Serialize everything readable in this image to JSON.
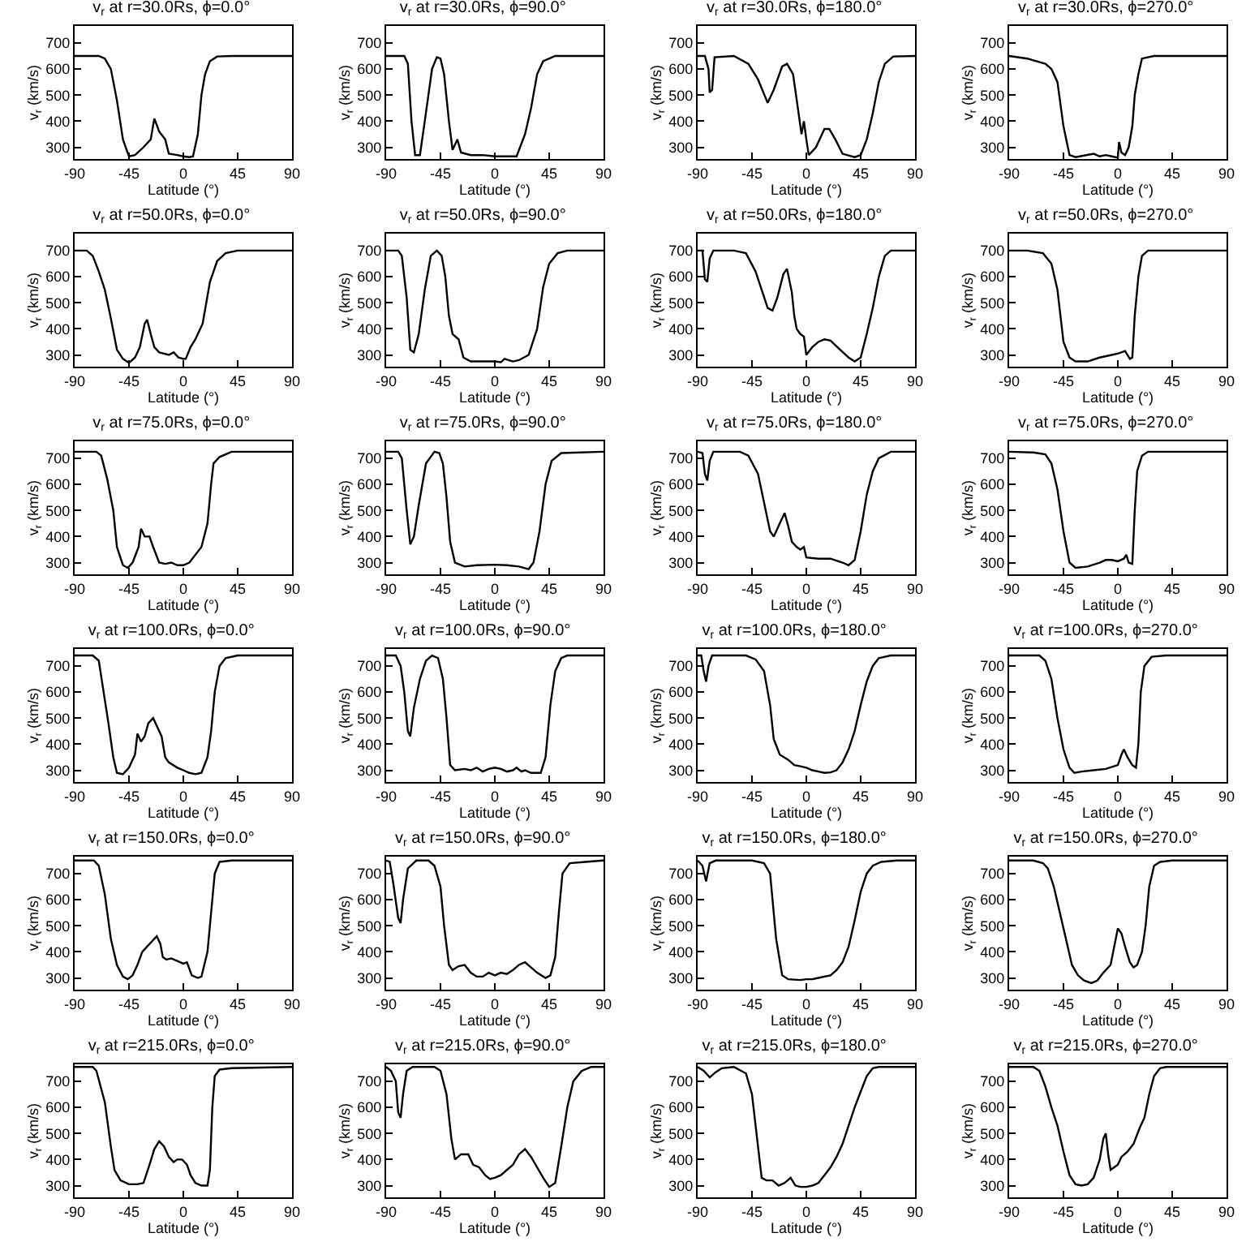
{
  "chart_data": [
    {
      "type": "line",
      "title": "v$_{r}$ at r=30.0Rs, ϕ=0.0°",
      "xlabel": "Latitude (°)",
      "ylabel": "v$_{r}$ (km/s)",
      "xlim": [
        -90,
        90
      ],
      "xticks": [
        -90,
        -45,
        0,
        45,
        90
      ],
      "ylim": [
        255,
        765
      ],
      "yticks": [
        300,
        400,
        500,
        600,
        700
      ],
      "x": [
        -90,
        -70,
        -65,
        -60,
        -55,
        -50,
        -45,
        -40,
        -33,
        -27,
        -24,
        -20,
        -15,
        -12,
        -5,
        0,
        5,
        8,
        12,
        15,
        18,
        22,
        28,
        40,
        90
      ],
      "series": [
        {
          "color": "#000000",
          "values": [
            650,
            650,
            640,
            600,
            480,
            330,
            265,
            270,
            300,
            330,
            410,
            360,
            330,
            275,
            270,
            265,
            262,
            265,
            350,
            500,
            580,
            630,
            648,
            650,
            650
          ]
        }
      ]
    },
    {
      "type": "line",
      "title": "v$_{r}$ at r=30.0Rs, ϕ=90.0°",
      "xlabel": "Latitude (°)",
      "ylabel": "v$_{r}$ (km/s)",
      "xlim": [
        -90,
        90
      ],
      "xticks": [
        -90,
        -45,
        0,
        45,
        90
      ],
      "ylim": [
        255,
        765
      ],
      "yticks": [
        300,
        400,
        500,
        600,
        700
      ],
      "x": [
        -90,
        -75,
        -72,
        -69,
        -66,
        -62,
        -58,
        -52,
        -48,
        -45,
        -42,
        -38,
        -35,
        -31,
        -28,
        -20,
        -10,
        0,
        10,
        18,
        25,
        30,
        35,
        40,
        50,
        90
      ],
      "series": [
        {
          "color": "#000000",
          "values": [
            650,
            650,
            620,
            400,
            270,
            270,
            400,
            600,
            645,
            640,
            580,
            400,
            290,
            330,
            280,
            270,
            270,
            265,
            265,
            265,
            350,
            450,
            580,
            630,
            650,
            650
          ]
        }
      ]
    },
    {
      "type": "line",
      "title": "v$_{r}$ at r=30.0Rs, ϕ=180.0°",
      "xlabel": "Latitude (°)",
      "ylabel": "v$_{r}$ (km/s)",
      "xlim": [
        -90,
        90
      ],
      "xticks": [
        -90,
        -45,
        0,
        45,
        90
      ],
      "ylim": [
        255,
        765
      ],
      "yticks": [
        300,
        400,
        500,
        600,
        700
      ],
      "x": [
        -90,
        -84,
        -81,
        -80,
        -78,
        -76,
        -60,
        -48,
        -40,
        -32,
        -27,
        -20,
        -16,
        -11,
        -7,
        -4,
        -2,
        0,
        2,
        8,
        15,
        19,
        24,
        30,
        40,
        45,
        50,
        55,
        60,
        65,
        72,
        90
      ],
      "series": [
        {
          "color": "#000000",
          "values": [
            650,
            650,
            600,
            510,
            520,
            645,
            650,
            620,
            560,
            470,
            520,
            610,
            620,
            580,
            450,
            350,
            400,
            330,
            270,
            300,
            370,
            370,
            330,
            275,
            262,
            270,
            330,
            430,
            550,
            620,
            648,
            650
          ]
        }
      ]
    },
    {
      "type": "line",
      "title": "v$_{r}$ at r=30.0Rs, ϕ=270.0°",
      "xlabel": "Latitude (°)",
      "ylabel": "v$_{r}$ (km/s)",
      "xlim": [
        -90,
        90
      ],
      "xticks": [
        -90,
        -45,
        0,
        45,
        90
      ],
      "ylim": [
        255,
        765
      ],
      "yticks": [
        300,
        400,
        500,
        600,
        700
      ],
      "x": [
        -90,
        -75,
        -60,
        -55,
        -50,
        -45,
        -40,
        -35,
        -20,
        -15,
        -10,
        -5,
        0,
        1,
        3,
        6,
        9,
        12,
        14,
        17,
        20,
        30,
        90
      ],
      "series": [
        {
          "color": "#000000",
          "values": [
            650,
            640,
            620,
            600,
            550,
            380,
            270,
            262,
            275,
            265,
            270,
            265,
            260,
            320,
            280,
            270,
            300,
            380,
            500,
            580,
            640,
            650,
            650
          ]
        }
      ]
    },
    {
      "type": "line",
      "title": "v$_{r}$ at r=50.0Rs, ϕ=0.0°",
      "xlabel": "Latitude (°)",
      "ylabel": "v$_{r}$ (km/s)",
      "xlim": [
        -90,
        90
      ],
      "xticks": [
        -90,
        -45,
        0,
        45,
        90
      ],
      "ylim": [
        255,
        765
      ],
      "yticks": [
        300,
        400,
        500,
        600,
        700
      ],
      "x": [
        -90,
        -80,
        -75,
        -70,
        -65,
        -60,
        -55,
        -50,
        -45,
        -40,
        -36,
        -32,
        -30,
        -27,
        -24,
        -20,
        -12,
        -8,
        -4,
        0,
        2,
        6,
        10,
        16,
        22,
        28,
        35,
        45,
        90
      ],
      "series": [
        {
          "color": "#000000",
          "values": [
            700,
            700,
            680,
            620,
            550,
            440,
            320,
            285,
            270,
            290,
            330,
            420,
            435,
            380,
            330,
            310,
            300,
            310,
            290,
            285,
            285,
            330,
            360,
            420,
            580,
            660,
            690,
            700,
            700
          ]
        }
      ]
    },
    {
      "type": "line",
      "title": "v$_{r}$ at r=50.0Rs, ϕ=90.0°",
      "xlabel": "Latitude (°)",
      "ylabel": "v$_{r}$ (km/s)",
      "xlim": [
        -90,
        90
      ],
      "xticks": [
        -90,
        -45,
        0,
        45,
        90
      ],
      "ylim": [
        255,
        765
      ],
      "yticks": [
        300,
        400,
        500,
        600,
        700
      ],
      "x": [
        -90,
        -80,
        -77,
        -73,
        -70,
        -67,
        -63,
        -58,
        -53,
        -48,
        -44,
        -41,
        -38,
        -35,
        -30,
        -26,
        -20,
        -10,
        0,
        5,
        8,
        15,
        20,
        28,
        35,
        40,
        45,
        52,
        60,
        90
      ],
      "series": [
        {
          "color": "#000000",
          "values": [
            700,
            700,
            680,
            520,
            320,
            310,
            380,
            550,
            680,
            700,
            680,
            600,
            450,
            380,
            360,
            290,
            275,
            275,
            275,
            272,
            285,
            275,
            280,
            300,
            400,
            560,
            650,
            690,
            700,
            700
          ]
        }
      ]
    },
    {
      "type": "line",
      "title": "v$_{r}$ at r=50.0Rs, ϕ=180.0°",
      "xlabel": "Latitude (°)",
      "ylabel": "v$_{r}$ (km/s)",
      "xlim": [
        -90,
        90
      ],
      "xticks": [
        -90,
        -45,
        0,
        45,
        90
      ],
      "ylim": [
        255,
        765
      ],
      "yticks": [
        300,
        400,
        500,
        600,
        700
      ],
      "x": [
        -90,
        -86,
        -84,
        -82,
        -80,
        -77,
        -60,
        -50,
        -42,
        -37,
        -32,
        -28,
        -24,
        -19,
        -16,
        -12,
        -10,
        -8,
        -5,
        -2,
        0,
        5,
        10,
        15,
        20,
        28,
        35,
        40,
        45,
        50,
        55,
        60,
        65,
        70,
        90
      ],
      "series": [
        {
          "color": "#000000",
          "values": [
            700,
            700,
            590,
            580,
            670,
            700,
            700,
            690,
            620,
            550,
            480,
            470,
            520,
            610,
            630,
            540,
            450,
            400,
            380,
            370,
            300,
            330,
            350,
            360,
            355,
            320,
            290,
            275,
            290,
            380,
            480,
            600,
            680,
            700,
            700
          ]
        }
      ]
    },
    {
      "type": "line",
      "title": "v$_{r}$ at r=50.0Rs, ϕ=270.0°",
      "xlabel": "Latitude (°)",
      "ylabel": "v$_{r}$ (km/s)",
      "xlim": [
        -90,
        90
      ],
      "xticks": [
        -90,
        -45,
        0,
        45,
        90
      ],
      "ylim": [
        255,
        765
      ],
      "yticks": [
        300,
        400,
        500,
        600,
        700
      ],
      "x": [
        -90,
        -75,
        -62,
        -55,
        -50,
        -45,
        -40,
        -35,
        -25,
        -15,
        -5,
        0,
        3,
        6,
        8,
        10,
        12,
        14,
        17,
        20,
        25,
        90
      ],
      "series": [
        {
          "color": "#000000",
          "values": [
            700,
            700,
            690,
            650,
            550,
            350,
            290,
            275,
            275,
            290,
            300,
            305,
            310,
            315,
            300,
            285,
            290,
            450,
            600,
            680,
            700,
            700
          ]
        }
      ]
    },
    {
      "type": "line",
      "title": "v$_{r}$ at r=75.0Rs, ϕ=0.0°",
      "xlabel": "Latitude (°)",
      "ylabel": "v$_{r}$ (km/s)",
      "xlim": [
        -90,
        90
      ],
      "xticks": [
        -90,
        -45,
        0,
        45,
        90
      ],
      "ylim": [
        255,
        765
      ],
      "yticks": [
        300,
        400,
        500,
        600,
        700
      ],
      "x": [
        -90,
        -72,
        -68,
        -63,
        -58,
        -55,
        -50,
        -46,
        -42,
        -37,
        -35,
        -32,
        -28,
        -25,
        -20,
        -15,
        -10,
        -5,
        0,
        5,
        10,
        15,
        20,
        23,
        25,
        30,
        40,
        90
      ],
      "series": [
        {
          "color": "#000000",
          "values": [
            725,
            725,
            710,
            620,
            500,
            360,
            290,
            280,
            300,
            360,
            430,
            400,
            400,
            360,
            300,
            295,
            300,
            290,
            290,
            300,
            330,
            360,
            450,
            600,
            680,
            705,
            725,
            725
          ]
        }
      ]
    },
    {
      "type": "line",
      "title": "v$_{r}$ at r=75.0Rs, ϕ=90.0°",
      "xlabel": "Latitude (°)",
      "ylabel": "v$_{r}$ (km/s)",
      "xlim": [
        -90,
        90
      ],
      "xticks": [
        -90,
        -45,
        0,
        45,
        90
      ],
      "ylim": [
        255,
        765
      ],
      "yticks": [
        300,
        400,
        500,
        600,
        700
      ],
      "x": [
        -90,
        -80,
        -77,
        -73,
        -70,
        -67,
        -63,
        -57,
        -50,
        -46,
        -43,
        -40,
        -37,
        -33,
        -25,
        -15,
        0,
        10,
        20,
        28,
        32,
        37,
        42,
        47,
        55,
        90
      ],
      "series": [
        {
          "color": "#000000",
          "values": [
            725,
            725,
            700,
            500,
            370,
            400,
            520,
            680,
            725,
            720,
            680,
            550,
            380,
            300,
            285,
            290,
            292,
            290,
            285,
            275,
            300,
            420,
            600,
            690,
            720,
            725
          ]
        }
      ]
    },
    {
      "type": "line",
      "title": "v$_{r}$ at r=75.0Rs, ϕ=180.0°",
      "xlabel": "Latitude (°)",
      "ylabel": "v$_{r}$ (km/s)",
      "xlim": [
        -90,
        90
      ],
      "xticks": [
        -90,
        -45,
        0,
        45,
        90
      ],
      "ylim": [
        255,
        765
      ],
      "yticks": [
        300,
        400,
        500,
        600,
        700
      ],
      "x": [
        -90,
        -86,
        -84,
        -82,
        -80,
        -77,
        -55,
        -48,
        -40,
        -35,
        -30,
        -27,
        -22,
        -18,
        -15,
        -12,
        -8,
        -5,
        -2,
        0,
        10,
        20,
        30,
        35,
        40,
        45,
        50,
        55,
        60,
        70,
        90
      ],
      "series": [
        {
          "color": "#000000",
          "values": [
            725,
            720,
            640,
            615,
            690,
            725,
            725,
            710,
            640,
            530,
            420,
            400,
            450,
            490,
            440,
            380,
            360,
            350,
            360,
            320,
            315,
            315,
            300,
            290,
            310,
            420,
            560,
            650,
            700,
            725,
            725
          ]
        }
      ]
    },
    {
      "type": "line",
      "title": "v$_{r}$ at r=75.0Rs, ϕ=270.0°",
      "xlabel": "Latitude (°)",
      "ylabel": "v$_{r}$ (km/s)",
      "xlim": [
        -90,
        90
      ],
      "xticks": [
        -90,
        -45,
        0,
        45,
        90
      ],
      "ylim": [
        255,
        765
      ],
      "yticks": [
        300,
        400,
        500,
        600,
        700
      ],
      "x": [
        -90,
        -70,
        -60,
        -55,
        -50,
        -45,
        -40,
        -35,
        -25,
        -15,
        -10,
        -5,
        0,
        5,
        7,
        9,
        12,
        14,
        16,
        20,
        25,
        90
      ],
      "series": [
        {
          "color": "#000000",
          "values": [
            725,
            722,
            715,
            680,
            580,
            420,
            300,
            280,
            285,
            300,
            310,
            310,
            305,
            315,
            330,
            300,
            295,
            500,
            650,
            710,
            725,
            725
          ]
        }
      ]
    },
    {
      "type": "line",
      "title": "v$_{r}$ at r=100.0Rs, ϕ=0.0°",
      "xlabel": "Latitude (°)",
      "ylabel": "v$_{r}$ (km/s)",
      "xlim": [
        -90,
        90
      ],
      "xticks": [
        -90,
        -45,
        0,
        45,
        90
      ],
      "ylim": [
        255,
        765
      ],
      "yticks": [
        300,
        400,
        500,
        600,
        700
      ],
      "x": [
        -90,
        -75,
        -70,
        -66,
        -62,
        -58,
        -55,
        -50,
        -45,
        -40,
        -38,
        -35,
        -32,
        -29,
        -25,
        -22,
        -18,
        -15,
        -12,
        -5,
        0,
        5,
        10,
        15,
        20,
        23,
        26,
        30,
        35,
        45,
        90
      ],
      "series": [
        {
          "color": "#000000",
          "values": [
            740,
            740,
            720,
            600,
            480,
            350,
            290,
            285,
            310,
            360,
            440,
            410,
            430,
            480,
            500,
            470,
            430,
            350,
            330,
            310,
            300,
            290,
            285,
            290,
            350,
            450,
            600,
            700,
            730,
            740,
            740
          ]
        }
      ]
    },
    {
      "type": "line",
      "title": "v$_{r}$ at r=100.0Rs, ϕ=90.0°",
      "xlabel": "Latitude (°)",
      "ylabel": "v$_{r}$ (km/s)",
      "xlim": [
        -90,
        90
      ],
      "xticks": [
        -90,
        -45,
        0,
        45,
        90
      ],
      "ylim": [
        255,
        765
      ],
      "yticks": [
        300,
        400,
        500,
        600,
        700
      ],
      "x": [
        -90,
        -82,
        -78,
        -75,
        -72,
        -70,
        -67,
        -62,
        -57,
        -52,
        -47,
        -43,
        -40,
        -37,
        -33,
        -25,
        -20,
        -15,
        -10,
        -5,
        0,
        5,
        10,
        15,
        18,
        22,
        25,
        30,
        38,
        42,
        46,
        50,
        55,
        60,
        90
      ],
      "series": [
        {
          "color": "#000000",
          "values": [
            740,
            740,
            700,
            600,
            450,
            430,
            540,
            650,
            720,
            740,
            730,
            650,
            500,
            320,
            300,
            305,
            300,
            310,
            295,
            305,
            310,
            305,
            295,
            300,
            310,
            295,
            300,
            290,
            290,
            350,
            550,
            680,
            730,
            740,
            740
          ]
        }
      ]
    },
    {
      "type": "line",
      "title": "v$_{r}$ at r=100.0Rs, ϕ=180.0°",
      "xlabel": "Latitude (°)",
      "ylabel": "v$_{r}$ (km/s)",
      "xlim": [
        -90,
        90
      ],
      "xticks": [
        -90,
        -45,
        0,
        45,
        90
      ],
      "ylim": [
        255,
        765
      ],
      "yticks": [
        300,
        400,
        500,
        600,
        700
      ],
      "x": [
        -90,
        -87,
        -85,
        -83,
        -81,
        -78,
        -50,
        -42,
        -35,
        -30,
        -27,
        -22,
        -15,
        -10,
        -5,
        0,
        5,
        10,
        15,
        20,
        25,
        30,
        35,
        40,
        45,
        50,
        55,
        60,
        70,
        90
      ],
      "series": [
        {
          "color": "#000000",
          "values": [
            740,
            740,
            680,
            640,
            700,
            740,
            740,
            725,
            680,
            550,
            420,
            360,
            340,
            320,
            315,
            310,
            300,
            295,
            290,
            292,
            300,
            330,
            380,
            450,
            550,
            640,
            700,
            730,
            740,
            740
          ]
        }
      ]
    },
    {
      "type": "line",
      "title": "v$_{r}$ at r=100.0Rs, ϕ=270.0°",
      "xlabel": "Latitude (°)",
      "ylabel": "v$_{r}$ (km/s)",
      "xlim": [
        -90,
        90
      ],
      "xticks": [
        -90,
        -45,
        0,
        45,
        90
      ],
      "ylim": [
        255,
        765
      ],
      "yticks": [
        300,
        400,
        500,
        600,
        700
      ],
      "x": [
        -90,
        -65,
        -60,
        -55,
        -50,
        -45,
        -40,
        -36,
        -30,
        -20,
        -10,
        0,
        3,
        5,
        8,
        12,
        15,
        17,
        19,
        22,
        28,
        40,
        90
      ],
      "series": [
        {
          "color": "#000000",
          "values": [
            740,
            740,
            720,
            650,
            500,
            380,
            310,
            290,
            295,
            300,
            305,
            320,
            360,
            380,
            350,
            320,
            310,
            400,
            600,
            700,
            735,
            740,
            740
          ]
        }
      ]
    },
    {
      "type": "line",
      "title": "v$_{r}$ at r=150.0Rs, ϕ=0.0°",
      "xlabel": "Latitude (°)",
      "ylabel": "v$_{r}$ (km/s)",
      "xlim": [
        -90,
        90
      ],
      "xticks": [
        -90,
        -45,
        0,
        45,
        90
      ],
      "ylim": [
        255,
        765
      ],
      "yticks": [
        300,
        400,
        500,
        600,
        700
      ],
      "x": [
        -90,
        -74,
        -70,
        -65,
        -60,
        -55,
        -50,
        -46,
        -42,
        -38,
        -34,
        -30,
        -26,
        -22,
        -19,
        -17,
        -14,
        -10,
        -5,
        0,
        3,
        7,
        12,
        15,
        20,
        23,
        26,
        30,
        40,
        90
      ],
      "series": [
        {
          "color": "#000000",
          "values": [
            750,
            750,
            730,
            620,
            450,
            350,
            305,
            295,
            310,
            350,
            400,
            420,
            440,
            460,
            430,
            380,
            370,
            375,
            365,
            355,
            360,
            310,
            300,
            305,
            400,
            550,
            700,
            745,
            750,
            750
          ]
        }
      ]
    },
    {
      "type": "line",
      "title": "v$_{r}$ at r=150.0Rs, ϕ=90.0°",
      "xlabel": "Latitude (°)",
      "ylabel": "v$_{r}$ (km/s)",
      "xlim": [
        -90,
        90
      ],
      "xticks": [
        -90,
        -45,
        0,
        45,
        90
      ],
      "ylim": [
        255,
        765
      ],
      "yticks": [
        300,
        400,
        500,
        600,
        700
      ],
      "x": [
        -90,
        -87,
        -84,
        -80,
        -78,
        -76,
        -72,
        -65,
        -55,
        -50,
        -45,
        -42,
        -38,
        -35,
        -30,
        -25,
        -20,
        -15,
        -10,
        -5,
        0,
        5,
        10,
        15,
        20,
        25,
        30,
        35,
        42,
        46,
        50,
        53,
        56,
        62,
        75,
        90
      ],
      "series": [
        {
          "color": "#000000",
          "values": [
            750,
            745,
            660,
            530,
            510,
            600,
            720,
            750,
            750,
            730,
            650,
            500,
            350,
            330,
            345,
            350,
            320,
            305,
            305,
            320,
            310,
            320,
            315,
            330,
            350,
            360,
            340,
            320,
            300,
            310,
            380,
            550,
            700,
            740,
            745,
            750
          ]
        }
      ]
    },
    {
      "type": "line",
      "title": "v$_{r}$ at r=150.0Rs, ϕ=180.0°",
      "xlabel": "Latitude (°)",
      "ylabel": "v$_{r}$ (km/s)",
      "xlim": [
        -90,
        90
      ],
      "xticks": [
        -90,
        -45,
        0,
        45,
        90
      ],
      "ylim": [
        255,
        765
      ],
      "yticks": [
        300,
        400,
        500,
        600,
        700
      ],
      "x": [
        -90,
        -86,
        -83,
        -80,
        -75,
        -45,
        -35,
        -30,
        -28,
        -25,
        -20,
        -15,
        -5,
        0,
        5,
        10,
        20,
        25,
        30,
        35,
        40,
        45,
        50,
        55,
        62,
        75,
        90
      ],
      "series": [
        {
          "color": "#000000",
          "values": [
            750,
            730,
            670,
            740,
            750,
            750,
            740,
            700,
            600,
            450,
            310,
            295,
            292,
            295,
            295,
            300,
            310,
            330,
            360,
            420,
            520,
            630,
            700,
            730,
            745,
            750,
            750
          ]
        }
      ]
    },
    {
      "type": "line",
      "title": "v$_{r}$ at r=150.0Rs, ϕ=270.0°",
      "xlabel": "Latitude (°)",
      "ylabel": "v$_{r}$ (km/s)",
      "xlim": [
        -90,
        90
      ],
      "xticks": [
        -90,
        -45,
        0,
        45,
        90
      ],
      "ylim": [
        255,
        765
      ],
      "yticks": [
        300,
        400,
        500,
        600,
        700
      ],
      "x": [
        -90,
        -70,
        -62,
        -58,
        -53,
        -48,
        -43,
        -38,
        -33,
        -28,
        -22,
        -17,
        -12,
        -6,
        -3,
        0,
        3,
        6,
        10,
        13,
        16,
        20,
        23,
        26,
        30,
        35,
        45,
        90
      ],
      "series": [
        {
          "color": "#000000",
          "values": [
            750,
            750,
            740,
            720,
            650,
            550,
            450,
            350,
            310,
            290,
            280,
            290,
            320,
            350,
            420,
            490,
            470,
            420,
            360,
            340,
            350,
            400,
            500,
            650,
            730,
            745,
            750,
            750
          ]
        }
      ]
    },
    {
      "type": "line",
      "title": "v$_{r}$ at r=215.0Rs, ϕ=0.0°",
      "xlabel": "Latitude (°)",
      "ylabel": "v$_{r}$ (km/s)",
      "xlim": [
        -90,
        90
      ],
      "xticks": [
        -90,
        -45,
        0,
        45,
        90
      ],
      "ylim": [
        255,
        765
      ],
      "yticks": [
        300,
        400,
        500,
        600,
        700
      ],
      "x": [
        -90,
        -75,
        -72,
        -65,
        -60,
        -57,
        -52,
        -45,
        -38,
        -33,
        -28,
        -24,
        -20,
        -16,
        -12,
        -8,
        -5,
        -1,
        3,
        6,
        10,
        15,
        20,
        22,
        24,
        26,
        30,
        40,
        90
      ],
      "series": [
        {
          "color": "#000000",
          "values": [
            755,
            755,
            740,
            620,
            450,
            360,
            320,
            305,
            305,
            310,
            380,
            440,
            470,
            450,
            410,
            390,
            400,
            400,
            380,
            340,
            310,
            300,
            300,
            360,
            600,
            720,
            745,
            750,
            755
          ]
        }
      ]
    },
    {
      "type": "line",
      "title": "v$_{r}$ at r=215.0Rs, ϕ=90.0°",
      "xlabel": "Latitude (°)",
      "ylabel": "v$_{r}$ (km/s)",
      "xlim": [
        -90,
        90
      ],
      "xticks": [
        -90,
        -45,
        0,
        45,
        90
      ],
      "ylim": [
        255,
        765
      ],
      "yticks": [
        300,
        400,
        500,
        600,
        700
      ],
      "x": [
        -90,
        -86,
        -82,
        -80,
        -78,
        -76,
        -73,
        -68,
        -50,
        -45,
        -40,
        -36,
        -33,
        -28,
        -22,
        -18,
        -13,
        -8,
        -4,
        0,
        5,
        10,
        15,
        20,
        25,
        30,
        35,
        40,
        45,
        50,
        55,
        60,
        65,
        72,
        80,
        90
      ],
      "series": [
        {
          "color": "#000000",
          "values": [
            755,
            740,
            700,
            580,
            560,
            650,
            740,
            755,
            755,
            740,
            650,
            480,
            400,
            420,
            420,
            380,
            370,
            340,
            325,
            330,
            340,
            360,
            380,
            420,
            440,
            410,
            370,
            330,
            295,
            310,
            450,
            600,
            700,
            740,
            755,
            755
          ]
        }
      ]
    },
    {
      "type": "line",
      "title": "v$_{r}$ at r=215.0Rs, ϕ=180.0°",
      "xlabel": "Latitude (°)",
      "ylabel": "v$_{r}$ (km/s)",
      "xlim": [
        -90,
        90
      ],
      "xticks": [
        -90,
        -45,
        0,
        45,
        90
      ],
      "ylim": [
        255,
        765
      ],
      "yticks": [
        300,
        400,
        500,
        600,
        700
      ],
      "x": [
        -90,
        -85,
        -80,
        -75,
        -70,
        -60,
        -50,
        -45,
        -40,
        -37,
        -33,
        -28,
        -23,
        -18,
        -13,
        -9,
        -5,
        0,
        5,
        10,
        15,
        20,
        25,
        30,
        35,
        40,
        45,
        50,
        55,
        60,
        90
      ],
      "series": [
        {
          "color": "#000000",
          "values": [
            755,
            740,
            715,
            735,
            750,
            755,
            730,
            650,
            450,
            330,
            320,
            320,
            300,
            310,
            330,
            300,
            295,
            295,
            300,
            310,
            340,
            370,
            410,
            460,
            530,
            600,
            660,
            720,
            750,
            755,
            755
          ]
        }
      ]
    },
    {
      "type": "line",
      "title": "v$_{r}$ at r=215.0Rs, ϕ=270.0°",
      "xlabel": "Latitude (°)",
      "ylabel": "v$_{r}$ (km/s)",
      "xlim": [
        -90,
        90
      ],
      "xticks": [
        -90,
        -45,
        0,
        45,
        90
      ],
      "ylim": [
        255,
        765
      ],
      "yticks": [
        300,
        400,
        500,
        600,
        700
      ],
      "x": [
        -90,
        -70,
        -65,
        -60,
        -55,
        -50,
        -45,
        -40,
        -35,
        -30,
        -25,
        -20,
        -15,
        -12,
        -10,
        -8,
        -6,
        -3,
        0,
        3,
        8,
        13,
        18,
        22,
        26,
        30,
        35,
        40,
        90
      ],
      "series": [
        {
          "color": "#000000",
          "values": [
            755,
            755,
            740,
            680,
            600,
            530,
            430,
            340,
            305,
            300,
            305,
            330,
            400,
            480,
            500,
            420,
            360,
            370,
            380,
            410,
            430,
            460,
            520,
            560,
            650,
            720,
            750,
            755,
            755
          ]
        }
      ]
    }
  ]
}
